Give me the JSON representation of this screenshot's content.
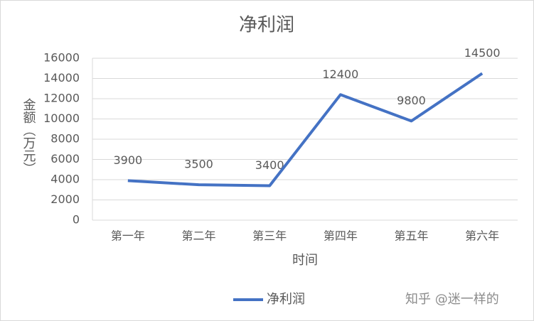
{
  "chart_data": {
    "type": "line",
    "title": "净利润",
    "x_label": "时间",
    "y_label": "金额（万元）",
    "categories": [
      "第一年",
      "第二年",
      "第三年",
      "第四年",
      "第五年",
      "第六年"
    ],
    "series": [
      {
        "name": "净利润",
        "color": "#4472c4",
        "values": [
          3900,
          3500,
          3400,
          12400,
          9800,
          14500
        ]
      }
    ],
    "ylim": [
      0,
      16000
    ],
    "yticks": [
      0,
      2000,
      4000,
      6000,
      8000,
      10000,
      12000,
      14000,
      16000
    ],
    "grid": true,
    "legend": "bottom",
    "watermark": "知乎 @迷一样的"
  }
}
